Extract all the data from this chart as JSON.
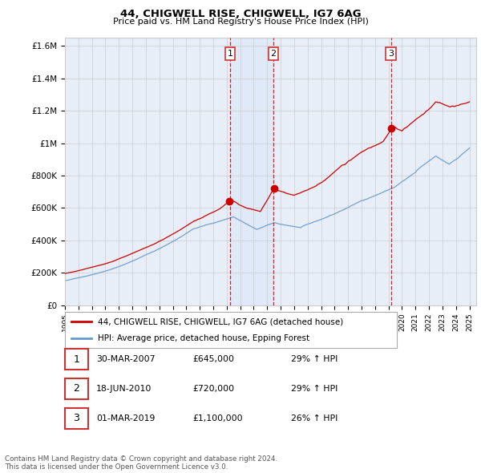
{
  "title": "44, CHIGWELL RISE, CHIGWELL, IG7 6AG",
  "subtitle": "Price paid vs. HM Land Registry's House Price Index (HPI)",
  "legend_property": "44, CHIGWELL RISE, CHIGWELL, IG7 6AG (detached house)",
  "legend_hpi": "HPI: Average price, detached house, Epping Forest",
  "footer": "Contains HM Land Registry data © Crown copyright and database right 2024.\nThis data is licensed under the Open Government Licence v3.0.",
  "transactions": [
    {
      "num": 1,
      "date": "30-MAR-2007",
      "price": "£645,000",
      "hpi": "29% ↑ HPI",
      "year": 2007.25,
      "value": 645000
    },
    {
      "num": 2,
      "date": "18-JUN-2010",
      "price": "£720,000",
      "hpi": "29% ↑ HPI",
      "year": 2010.46,
      "value": 720000
    },
    {
      "num": 3,
      "date": "01-MAR-2019",
      "price": "£1,100,000",
      "hpi": "26% ↑ HPI",
      "year": 2019.17,
      "value": 1100000
    }
  ],
  "transaction_marker_color": "#cc0000",
  "property_line_color": "#cc0000",
  "hpi_line_color": "#6699cc",
  "shade_color": "#dde8f8",
  "ylim": [
    0,
    1650000
  ],
  "yticks": [
    0,
    200000,
    400000,
    600000,
    800000,
    1000000,
    1200000,
    1400000,
    1600000
  ],
  "ytick_labels": [
    "£0",
    "£200K",
    "£400K",
    "£600K",
    "£800K",
    "£1M",
    "£1.2M",
    "£1.4M",
    "£1.6M"
  ],
  "xlim_start": 1995.0,
  "xlim_end": 2025.5,
  "plot_bg_color": "#e8eef8",
  "grid_color": "#cccccc"
}
